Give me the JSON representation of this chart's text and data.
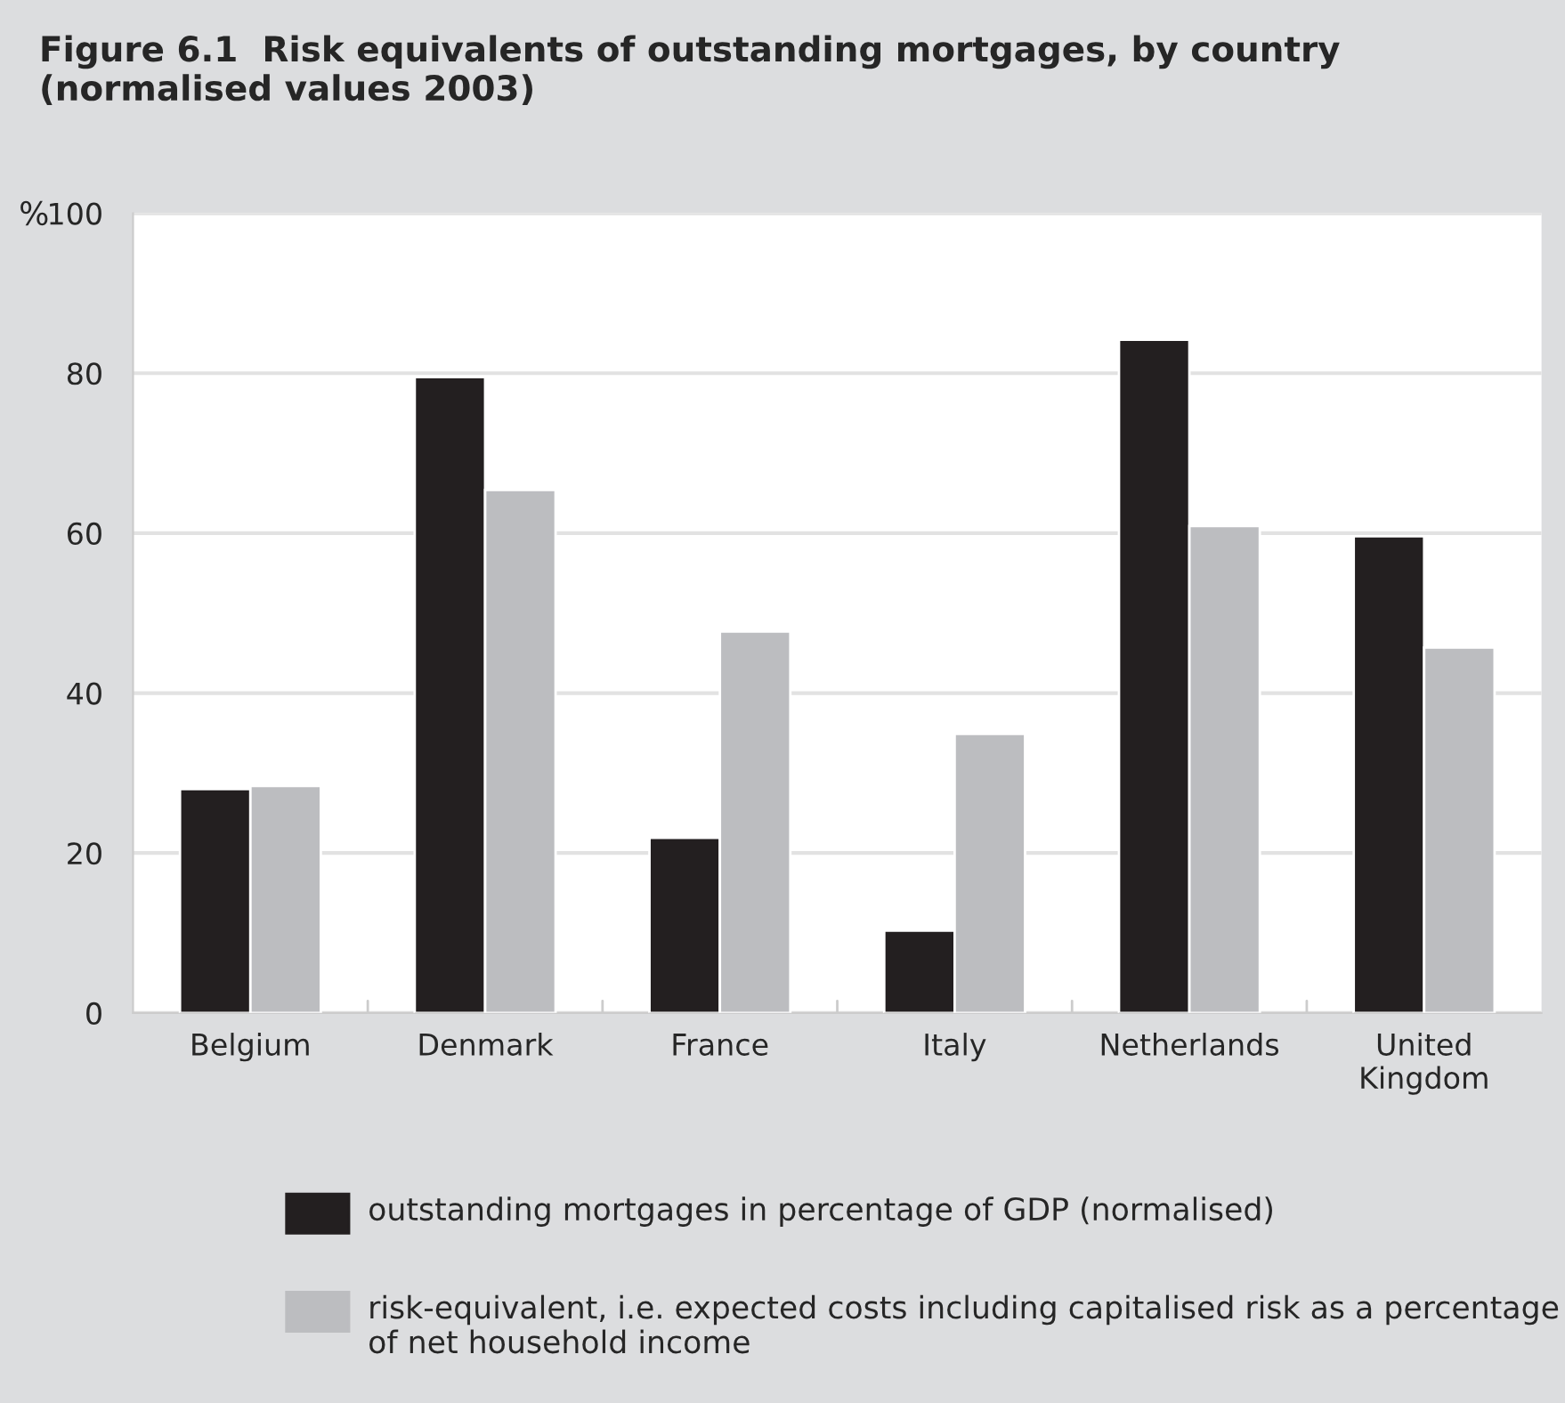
{
  "chart_data": {
    "type": "bar",
    "title": "Figure 6.1  Risk equivalents of outstanding mortgages, by country (normalised values 2003)",
    "ylabel": "%",
    "categories": [
      "Belgium",
      "Denmark",
      "France",
      "Italy",
      "Netherlands",
      "United\nKingdom"
    ],
    "series": [
      {
        "name": "outstanding mortgages in percentage of GDP (normalised)",
        "color": "#231f20",
        "values": [
          28.0,
          79.5,
          21.9,
          10.3,
          84.2,
          59.6
        ]
      },
      {
        "name": "risk-equivalent, i.e. expected costs including capitalised risk as a percentage of net household income",
        "color": "#bcbdc0",
        "values": [
          28.4,
          65.4,
          47.7,
          34.9,
          60.9,
          45.7
        ]
      }
    ],
    "ylim": [
      0,
      100
    ],
    "yticks": [
      0,
      20,
      40,
      60,
      80,
      100
    ],
    "grid": "y",
    "legend": "bottom"
  }
}
